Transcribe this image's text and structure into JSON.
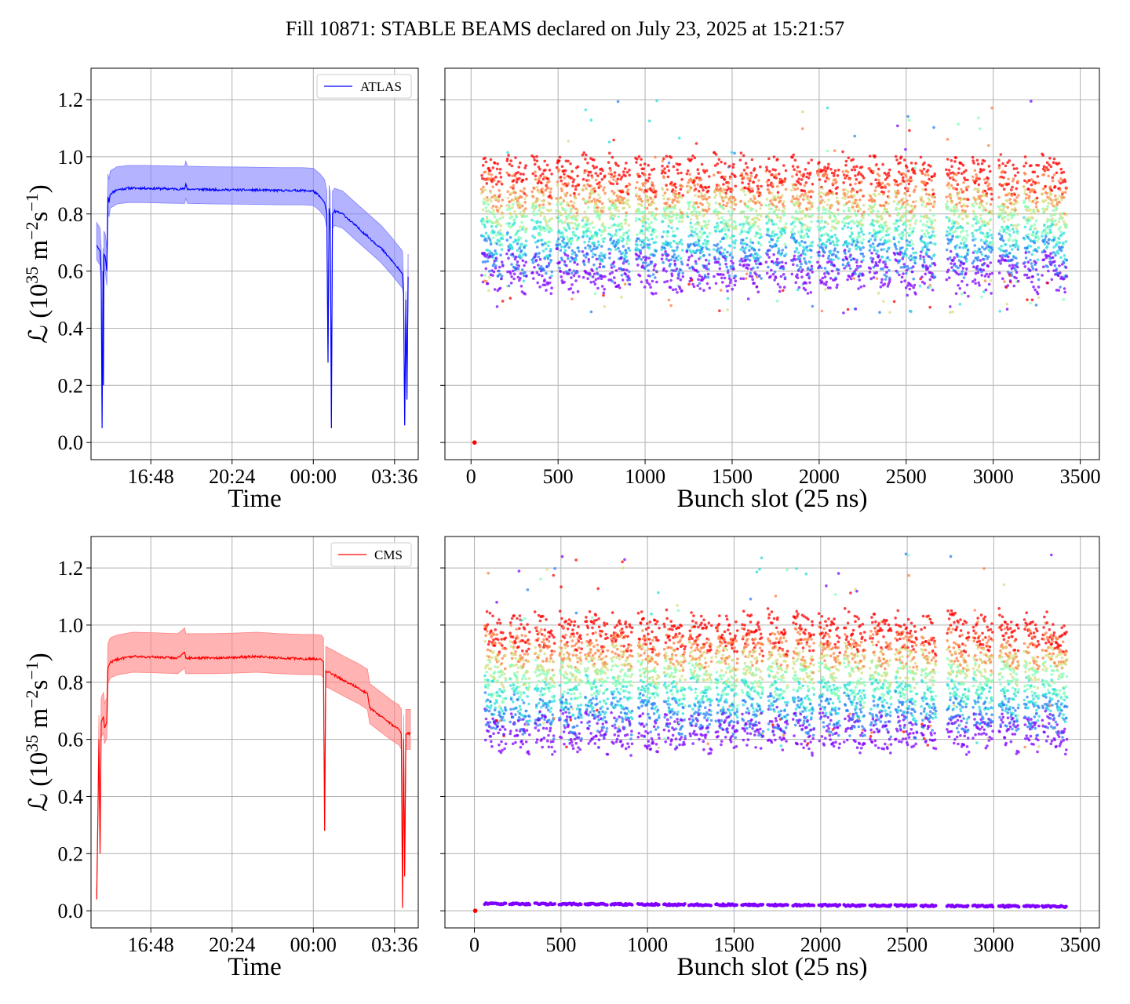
{
  "figure_title": "Fill 10871: STABLE BEAMS declared on July 23, 2025 at 15:21:57",
  "chart_data": [
    {
      "type": "line",
      "experiment": "ATLAS",
      "xlabel": "Time",
      "ylabel_parts": [
        "ℒ (10",
        "35",
        " m",
        "−2",
        "s",
        "−1",
        ")"
      ],
      "x_ticks": [
        "16:48",
        "20:24",
        "00:00",
        "03:36"
      ],
      "x_tick_hours": [
        1.8,
        5.4,
        9.0,
        12.6
      ],
      "xlim_hours": [
        -0.85,
        13.65
      ],
      "y_ticks": [
        "0.0",
        "0.2",
        "0.4",
        "0.6",
        "0.8",
        "1.0",
        "1.2"
      ],
      "ylim": [
        -0.06,
        1.31
      ],
      "grid": true,
      "legend": {
        "label": "ATLAS",
        "position": "top-right"
      },
      "line_color": "#0000ff",
      "band_color": "#8080ff",
      "mean_series": [
        [
          -0.6,
          0.69
        ],
        [
          -0.45,
          0.67
        ],
        [
          -0.4,
          0.6
        ],
        [
          -0.36,
          0.05
        ],
        [
          -0.32,
          0.6
        ],
        [
          -0.3,
          0.2
        ],
        [
          -0.28,
          0.66
        ],
        [
          -0.22,
          0.65
        ],
        [
          -0.15,
          0.6
        ],
        [
          -0.1,
          0.86
        ],
        [
          -0.05,
          0.84
        ],
        [
          0.0,
          0.87
        ],
        [
          0.3,
          0.885
        ],
        [
          0.8,
          0.89
        ],
        [
          1.5,
          0.89
        ],
        [
          2.5,
          0.888
        ],
        [
          3.3,
          0.887
        ],
        [
          3.35,
          0.905
        ],
        [
          3.42,
          0.887
        ],
        [
          4.5,
          0.885
        ],
        [
          6.0,
          0.884
        ],
        [
          7.5,
          0.882
        ],
        [
          8.5,
          0.882
        ],
        [
          9.0,
          0.88
        ],
        [
          9.3,
          0.86
        ],
        [
          9.5,
          0.84
        ],
        [
          9.6,
          0.8
        ],
        [
          9.65,
          0.28
        ],
        [
          9.7,
          0.82
        ],
        [
          9.75,
          0.79
        ],
        [
          9.8,
          0.05
        ],
        [
          9.85,
          0.8
        ],
        [
          9.95,
          0.81
        ],
        [
          10.3,
          0.8
        ],
        [
          11.0,
          0.75
        ],
        [
          12.0,
          0.68
        ],
        [
          12.5,
          0.635
        ],
        [
          12.95,
          0.59
        ],
        [
          13.0,
          0.52
        ],
        [
          13.05,
          0.06
        ],
        [
          13.1,
          0.5
        ],
        [
          13.15,
          0.15
        ],
        [
          13.2,
          0.58
        ]
      ],
      "band_half_width": 0.05
    },
    {
      "type": "scatter",
      "experiment": "ATLAS",
      "xlabel": "Bunch slot (25 ns)",
      "x_ticks": [
        "0",
        "500",
        "1000",
        "1500",
        "2000",
        "2500",
        "3000",
        "3500"
      ],
      "x_tick_values": [
        0,
        500,
        1000,
        1500,
        2000,
        2500,
        3000,
        3500
      ],
      "xlim": [
        -150,
        3610
      ],
      "ylim": [
        -0.06,
        1.31
      ],
      "grid": true,
      "colormap": "rainbow",
      "isolated_points": [
        {
          "x": 20,
          "y": 0.0
        }
      ],
      "trains": [
        [
          60,
          180
        ],
        [
          205,
          320
        ],
        [
          350,
          465
        ],
        [
          490,
          620
        ],
        [
          640,
          770
        ],
        [
          790,
          910
        ],
        [
          945,
          1065
        ],
        [
          1095,
          1215
        ],
        [
          1240,
          1370
        ],
        [
          1395,
          1520
        ],
        [
          1545,
          1665
        ],
        [
          1695,
          1810
        ],
        [
          1840,
          1960
        ],
        [
          1990,
          2110
        ],
        [
          2135,
          2255
        ],
        [
          2285,
          2405
        ],
        [
          2430,
          2555
        ],
        [
          2580,
          2665
        ],
        [
          2730,
          2855
        ],
        [
          2880,
          2995
        ],
        [
          3030,
          3145
        ],
        [
          3175,
          3260
        ],
        [
          3280,
          3420
        ]
      ],
      "y_bands": {
        "low": 0.62,
        "high": 0.96,
        "outlier_low": 0.45,
        "outlier_high": 1.2
      }
    },
    {
      "type": "line",
      "experiment": "CMS",
      "xlabel": "Time",
      "ylabel_parts": [
        "ℒ (10",
        "35",
        " m",
        "−2",
        "s",
        "−1",
        ")"
      ],
      "x_ticks": [
        "16:48",
        "20:24",
        "00:00",
        "03:36"
      ],
      "x_tick_hours": [
        1.8,
        5.4,
        9.0,
        12.6
      ],
      "xlim_hours": [
        -0.85,
        13.65
      ],
      "y_ticks": [
        "0.0",
        "0.2",
        "0.4",
        "0.6",
        "0.8",
        "1.0",
        "1.2"
      ],
      "ylim": [
        -0.06,
        1.31
      ],
      "grid": true,
      "legend": {
        "label": "CMS",
        "position": "top-right"
      },
      "line_color": "#ff0000",
      "band_color": "#ff8080",
      "mean_series": [
        [
          -0.6,
          0.04
        ],
        [
          -0.55,
          0.3
        ],
        [
          -0.5,
          0.6
        ],
        [
          -0.45,
          0.2
        ],
        [
          -0.4,
          0.66
        ],
        [
          -0.3,
          0.68
        ],
        [
          -0.25,
          0.64
        ],
        [
          -0.15,
          0.66
        ],
        [
          -0.1,
          0.85
        ],
        [
          0.0,
          0.87
        ],
        [
          0.3,
          0.88
        ],
        [
          1.0,
          0.89
        ],
        [
          2.0,
          0.888
        ],
        [
          3.0,
          0.885
        ],
        [
          3.3,
          0.905
        ],
        [
          3.35,
          0.885
        ],
        [
          4.5,
          0.885
        ],
        [
          5.5,
          0.887
        ],
        [
          6.5,
          0.89
        ],
        [
          7.5,
          0.885
        ],
        [
          8.5,
          0.882
        ],
        [
          9.0,
          0.882
        ],
        [
          9.35,
          0.88
        ],
        [
          9.45,
          0.87
        ],
        [
          9.5,
          0.28
        ],
        [
          9.55,
          0.84
        ],
        [
          9.8,
          0.83
        ],
        [
          10.5,
          0.8
        ],
        [
          11.0,
          0.78
        ],
        [
          11.4,
          0.76
        ],
        [
          11.5,
          0.71
        ],
        [
          12.0,
          0.68
        ],
        [
          12.5,
          0.65
        ],
        [
          12.8,
          0.635
        ],
        [
          12.9,
          0.62
        ],
        [
          12.95,
          0.01
        ],
        [
          13.0,
          0.6
        ],
        [
          13.05,
          0.12
        ],
        [
          13.1,
          0.62
        ],
        [
          13.3,
          0.62
        ]
      ],
      "band_half_width": 0.055
    },
    {
      "type": "scatter",
      "experiment": "CMS",
      "xlabel": "Bunch slot (25 ns)",
      "x_ticks": [
        "0",
        "500",
        "1000",
        "1500",
        "2000",
        "2500",
        "3000",
        "3500"
      ],
      "x_tick_values": [
        0,
        500,
        1000,
        1500,
        2000,
        2500,
        3000,
        3500
      ],
      "xlim": [
        -170,
        3610
      ],
      "ylim": [
        -0.06,
        1.31
      ],
      "grid": true,
      "colormap": "rainbow",
      "isolated_points": [
        {
          "x": 5,
          "y": 0.0
        }
      ],
      "trains": [
        [
          60,
          180
        ],
        [
          205,
          320
        ],
        [
          350,
          465
        ],
        [
          490,
          620
        ],
        [
          640,
          770
        ],
        [
          790,
          910
        ],
        [
          945,
          1065
        ],
        [
          1095,
          1215
        ],
        [
          1240,
          1370
        ],
        [
          1395,
          1520
        ],
        [
          1545,
          1665
        ],
        [
          1695,
          1810
        ],
        [
          1840,
          1960
        ],
        [
          1990,
          2110
        ],
        [
          2135,
          2255
        ],
        [
          2285,
          2405
        ],
        [
          2430,
          2555
        ],
        [
          2580,
          2665
        ],
        [
          2730,
          2855
        ],
        [
          2880,
          2995
        ],
        [
          3030,
          3145
        ],
        [
          3175,
          3260
        ],
        [
          3280,
          3420
        ]
      ],
      "y_bands": {
        "low": 0.65,
        "high": 1.0,
        "outlier_low": 0.57,
        "outlier_high": 1.25
      },
      "low_series": {
        "y_start": 0.025,
        "y_end": 0.015,
        "color": "#8000ff"
      }
    }
  ]
}
